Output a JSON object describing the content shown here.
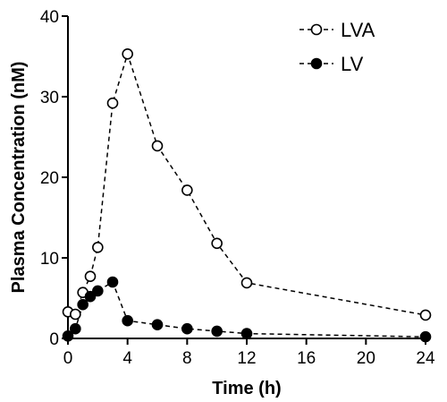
{
  "chart_data": {
    "type": "line",
    "x_label": "Time (h)",
    "y_label": "Plasma Concentration (nM)",
    "x": [
      0,
      0.5,
      1,
      1.5,
      2,
      3,
      4,
      6,
      8,
      10,
      12,
      24
    ],
    "series": [
      {
        "name": "LVA",
        "color": "#000000",
        "marker_fill": "#ffffff",
        "values": [
          3.3,
          3.0,
          5.7,
          7.7,
          11.3,
          29.2,
          35.3,
          23.9,
          18.4,
          11.8,
          6.9,
          2.9
        ]
      },
      {
        "name": "LV",
        "color": "#000000",
        "marker_fill": "#000000",
        "values": [
          0.3,
          1.2,
          4.2,
          5.2,
          5.9,
          7.0,
          2.2,
          1.7,
          1.2,
          0.9,
          0.6,
          0.2
        ]
      }
    ],
    "line_style": "dashed",
    "xlim": [
      0,
      24
    ],
    "xticks": [
      0,
      4,
      8,
      12,
      16,
      20,
      24
    ],
    "ylim": [
      0,
      40
    ],
    "yticks": [
      0,
      10,
      20,
      30,
      40
    ],
    "legend": "upper right"
  }
}
